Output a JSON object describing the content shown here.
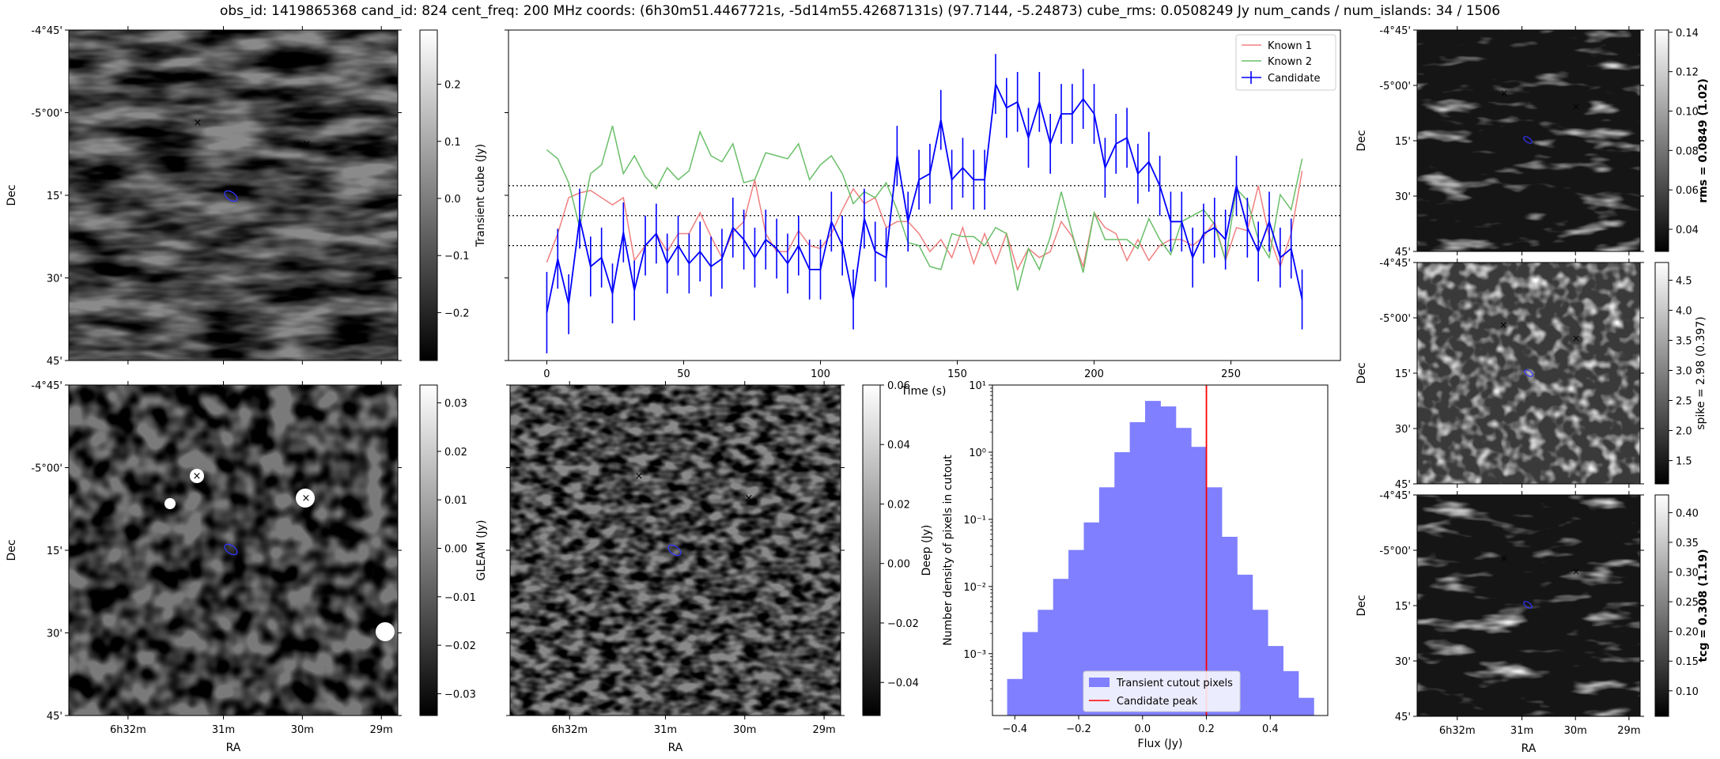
{
  "title": "obs_id: 1419865368 cand_id: 824 cent_freq: 200 MHz coords: (6h30m51.4467721s, -5d14m55.42687131s) (97.7144, -5.24873) cube_rms: 0.0508249 Jy num_cands / num_islands: 34 / 1506",
  "dec_ticks": [
    "-4°45'",
    "-5°00'",
    "15'",
    "30'",
    "45'"
  ],
  "ra_ticks": [
    "6h32m",
    "31m",
    "30m",
    "29m"
  ],
  "dec_label": "Dec",
  "ra_label": "RA",
  "colors": {
    "candidate": "#0000ff",
    "known1": "#f08080",
    "known2": "#6abf69",
    "red": "#ff0000",
    "hist": "#7f7fff",
    "green": "#008000"
  },
  "panels": {
    "transient": {
      "cbar_label": "Transient cube (Jy)",
      "cbar_ticks": [
        "0.2",
        "0.1",
        "0.0",
        "−0.1",
        "−0.2"
      ]
    },
    "gleam": {
      "cbar_label": "GLEAM (Jy)",
      "cbar_ticks": [
        "0.03",
        "0.02",
        "0.01",
        "0.00",
        "−0.01",
        "−0.02",
        "−0.03"
      ]
    },
    "deep": {
      "cbar_label": "Deep (Jy)",
      "cbar_ticks": [
        "0.06",
        "0.04",
        "0.02",
        "0.00",
        "−0.02",
        "−0.04"
      ]
    },
    "rms": {
      "cbar_label": "rms = 0.0849 (1.02)",
      "cbar_ticks": [
        "0.14",
        "0.12",
        "0.10",
        "0.08",
        "0.06",
        "0.04"
      ]
    },
    "spike": {
      "cbar_label": "spike = 2.98 (0.397)",
      "cbar_ticks": [
        "4.5",
        "4.0",
        "3.5",
        "3.0",
        "2.5",
        "2.0",
        "1.5"
      ]
    },
    "tcg": {
      "cbar_label": "tcg = 0.308 (1.19)",
      "cbar_ticks": [
        "0.40",
        "0.35",
        "0.30",
        "0.25",
        "0.20",
        "0.15",
        "0.10"
      ]
    }
  },
  "chart_data": [
    {
      "type": "line",
      "xlabel": "Time (s)",
      "ylabel": "",
      "xlim": [
        -14,
        290
      ],
      "ylim": [
        -2.42,
        3.1
      ],
      "x_ticks": [
        0,
        50,
        100,
        150,
        200,
        250
      ],
      "hlines": [
        -0.5,
        0,
        0.5
      ],
      "legend": [
        "Known 1",
        "Known 2",
        "Candidate"
      ],
      "legend_position": "top-right",
      "x": [
        0,
        4,
        8,
        12,
        16,
        20,
        24,
        28,
        32,
        36,
        40,
        44,
        48,
        52,
        56,
        60,
        64,
        68,
        72,
        76,
        80,
        84,
        88,
        92,
        96,
        100,
        104,
        108,
        112,
        116,
        120,
        124,
        128,
        132,
        136,
        140,
        144,
        148,
        152,
        156,
        160,
        164,
        168,
        172,
        176,
        180,
        184,
        188,
        192,
        196,
        200,
        204,
        208,
        212,
        216,
        220,
        224,
        228,
        232,
        236,
        240,
        244,
        248,
        252,
        256,
        260,
        264,
        268,
        272,
        276
      ],
      "series": [
        {
          "name": "Known 1",
          "values": [
            -0.78,
            -0.3,
            0.3,
            0.38,
            0.42,
            0.3,
            0.18,
            0.3,
            -0.75,
            -0.5,
            -0.3,
            -0.6,
            -0.3,
            -0.3,
            0.05,
            -0.35,
            -0.7,
            -0.28,
            -0.1,
            0.6,
            -0.3,
            -0.6,
            -0.6,
            -0.25,
            -0.5,
            -0.55,
            -0.3,
            0.1,
            0.45,
            0.2,
            0.3,
            -0.2,
            -0.1,
            -0.1,
            -0.3,
            -0.6,
            -0.4,
            -0.7,
            -0.2,
            -0.8,
            -0.3,
            -0.8,
            -0.3,
            -0.9,
            -0.55,
            -0.7,
            -0.6,
            -0.1,
            -0.35,
            -0.85,
            0.05,
            -0.2,
            -0.3,
            -0.75,
            -0.4,
            -0.75,
            -0.5,
            -0.4,
            -0.4,
            -0.5,
            -0.35,
            -0.1,
            -0.75,
            -0.2,
            -0.25,
            0.5,
            -0.35,
            -0.85,
            -0.3,
            0.75
          ]
        },
        {
          "name": "Known 2",
          "values": [
            1.1,
            0.95,
            0.55,
            -0.2,
            0.7,
            0.85,
            1.5,
            0.7,
            1.0,
            0.65,
            0.45,
            0.8,
            0.6,
            0.75,
            1.4,
            1.0,
            0.9,
            1.2,
            0.55,
            0.6,
            1.05,
            1.0,
            0.95,
            1.2,
            0.6,
            0.85,
            1.0,
            0.7,
            0.2,
            0.4,
            0.3,
            0.55,
            0.1,
            -0.45,
            -0.5,
            -0.85,
            -0.9,
            -0.3,
            -0.35,
            -0.35,
            -0.5,
            -0.2,
            -0.3,
            -1.25,
            -0.55,
            -0.9,
            -0.35,
            0.4,
            -0.3,
            -0.95,
            0.05,
            -0.4,
            -0.4,
            -0.4,
            -0.55,
            -0.05,
            -0.4,
            -0.65,
            -0.1,
            0.0,
            0.1,
            -0.15,
            -0.75,
            0.45,
            0.25,
            -0.4,
            -0.7,
            0.35,
            0.1,
            0.95
          ]
        },
        {
          "name": "Candidate",
          "values": [
            -1.62,
            -0.72,
            -1.48,
            -0.05,
            -0.85,
            -0.7,
            -1.3,
            -0.28,
            -1.25,
            -0.5,
            -0.3,
            -0.8,
            -0.5,
            -0.8,
            -0.6,
            -0.85,
            -0.72,
            -0.2,
            -0.4,
            -0.7,
            -0.4,
            -0.55,
            -0.8,
            -0.5,
            -0.9,
            -0.9,
            -0.1,
            -0.5,
            -1.4,
            -0.05,
            -0.6,
            -0.7,
            1.0,
            -0.1,
            0.6,
            0.7,
            1.6,
            0.6,
            0.8,
            0.6,
            0.6,
            2.2,
            1.8,
            1.9,
            1.3,
            1.9,
            1.2,
            1.7,
            1.7,
            1.95,
            1.7,
            0.8,
            1.2,
            1.3,
            0.7,
            0.9,
            0.5,
            -0.1,
            -0.1,
            -0.7,
            -0.3,
            -0.2,
            -0.4,
            0.5,
            -0.2,
            -0.6,
            -0.1,
            -0.7,
            -0.55,
            -1.4
          ]
        }
      ],
      "candidate_errors": [
        0.68,
        0.5,
        0.5,
        0.5,
        0.5,
        0.5,
        0.5,
        0.5,
        0.5,
        0.5,
        0.5,
        0.5,
        0.5,
        0.5,
        0.5,
        0.5,
        0.5,
        0.5,
        0.5,
        0.5,
        0.5,
        0.5,
        0.5,
        0.5,
        0.5,
        0.5,
        0.5,
        0.5,
        0.5,
        0.5,
        0.5,
        0.5,
        0.5,
        0.5,
        0.5,
        0.5,
        0.5,
        0.5,
        0.5,
        0.5,
        0.5,
        0.5,
        0.5,
        0.5,
        0.5,
        0.5,
        0.5,
        0.5,
        0.5,
        0.5,
        0.5,
        0.5,
        0.5,
        0.5,
        0.5,
        0.5,
        0.5,
        0.5,
        0.5,
        0.5,
        0.5,
        0.5,
        0.5,
        0.5,
        0.5,
        0.5,
        0.5,
        0.5,
        0.5,
        0.5
      ]
    },
    {
      "type": "bar",
      "xlabel": "Flux (Jy)",
      "ylabel": "Number density of pixels in cutout",
      "xlim": [
        -0.47,
        0.58
      ],
      "ylim": [
        0.00012,
        10
      ],
      "y_scale": "log",
      "x_ticks": [
        "−0.4",
        "−0.2",
        "0.0",
        "0.2",
        "0.4"
      ],
      "y_ticks": [
        "10¹",
        "10⁰",
        "10⁻¹",
        "10⁻²",
        "10⁻³"
      ],
      "bin_edges": [
        -0.424,
        -0.376,
        -0.328,
        -0.28,
        -0.232,
        -0.184,
        -0.136,
        -0.088,
        -0.04,
        0.008,
        0.056,
        0.104,
        0.152,
        0.2,
        0.248,
        0.296,
        0.344,
        0.392,
        0.44,
        0.488,
        0.536
      ],
      "values": [
        0.00042,
        0.0021,
        0.0045,
        0.013,
        0.035,
        0.09,
        0.3,
        1.0,
        2.8,
        5.8,
        4.8,
        2.3,
        1.2,
        0.3,
        0.055,
        0.015,
        0.0045,
        0.0013,
        0.00055,
        0.00022
      ],
      "candidate_peak": 0.2,
      "legend": [
        "Transient cutout pixels",
        "Candidate peak"
      ],
      "legend_position": "lower-center"
    }
  ]
}
